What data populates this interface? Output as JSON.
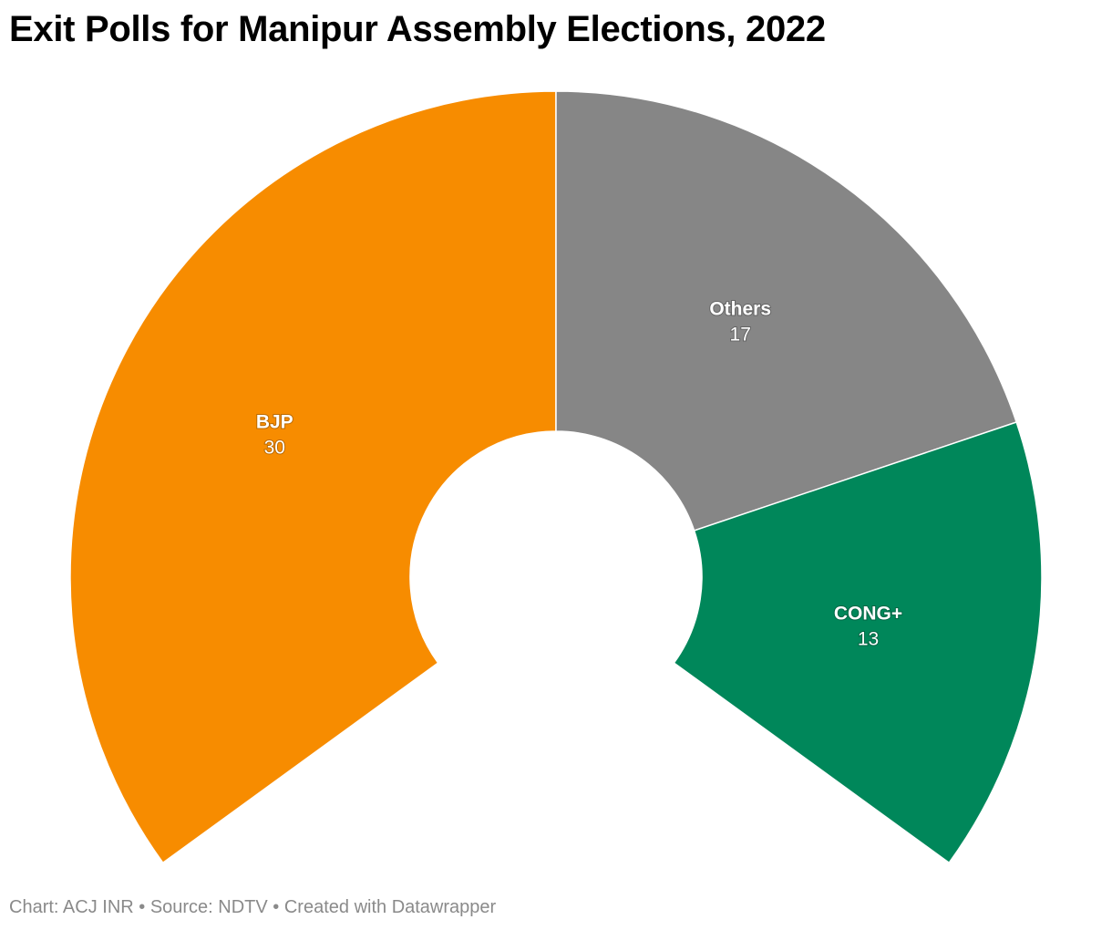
{
  "title": "Exit Polls for Manipur Assembly Elections, 2022",
  "footer": {
    "text": "Chart: ACJ INR • Source: NDTV • Created with Datawrapper"
  },
  "chart_data": {
    "type": "pie",
    "style": "semi-donut (parliament arc)",
    "categories": [
      "BJP",
      "Others",
      "CONG+"
    ],
    "values": [
      30,
      17,
      13
    ],
    "colors": [
      "#f78c00",
      "#868686",
      "#00875a"
    ],
    "data_labels": [
      "30",
      "17",
      "13"
    ],
    "title": "Exit Polls for Manipur Assembly Elections, 2022"
  }
}
